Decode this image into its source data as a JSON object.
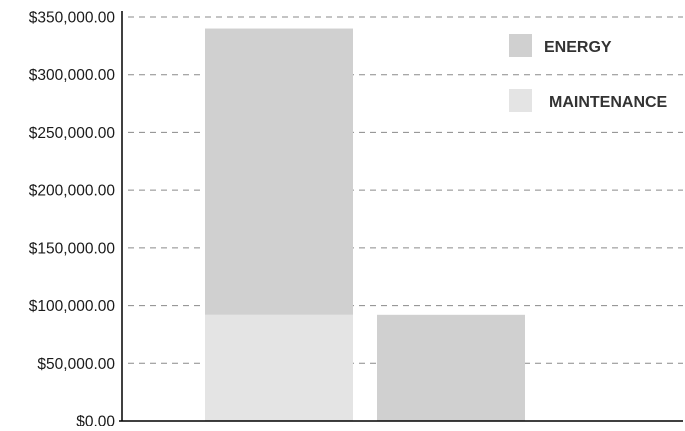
{
  "chart_data": {
    "type": "bar",
    "stacked": true,
    "categories": [
      "",
      ""
    ],
    "series": [
      {
        "name": "MAINTENANCE",
        "color": "#e4e4e4",
        "values": [
          92000,
          0
        ]
      },
      {
        "name": "ENERGY",
        "color": "#d0d0d0",
        "values": [
          248000,
          92000
        ]
      }
    ],
    "ylim": [
      0,
      350000
    ],
    "yticks": [
      {
        "value": 0,
        "label": "$0.00"
      },
      {
        "value": 50000,
        "label": "$50,000.00"
      },
      {
        "value": 100000,
        "label": "$100,000.00"
      },
      {
        "value": 150000,
        "label": "$150,000.00"
      },
      {
        "value": 200000,
        "label": "$200,000.00"
      },
      {
        "value": 250000,
        "label": "$250,000.00"
      },
      {
        "value": 300000,
        "label": "$300,000.00"
      },
      {
        "value": 350000,
        "label": "$350,000.00"
      }
    ],
    "title": "",
    "xlabel": "",
    "ylabel": "",
    "grid": true,
    "legend_placement": "top-right",
    "legend": [
      {
        "name": "ENERGY",
        "color": "#d0d0d0"
      },
      {
        "name": "MAINTENANCE",
        "color": "#e4e4e4"
      }
    ]
  }
}
